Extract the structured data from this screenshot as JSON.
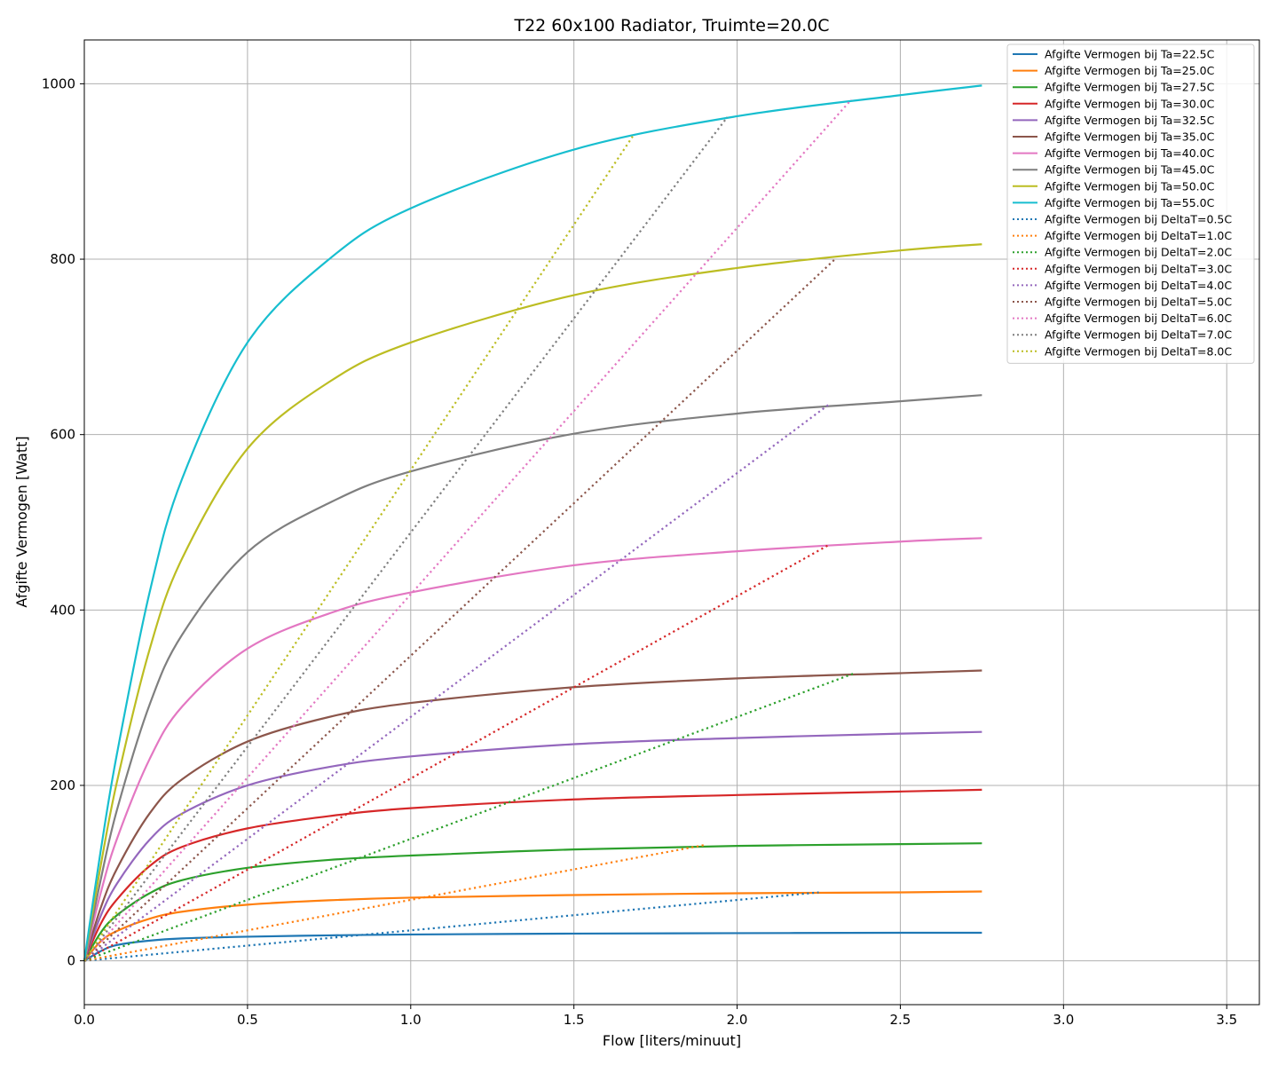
{
  "chart_data": {
    "type": "line",
    "title": "T22 60x100 Radiator, Truimte=20.0C",
    "xlabel": "Flow [liters/minuut]",
    "ylabel": "Afgifte Vermogen [Watt]",
    "xlim": [
      0,
      3.6
    ],
    "ylim": [
      -50,
      1050
    ],
    "xticks": [
      0.0,
      0.5,
      1.0,
      1.5,
      2.0,
      2.5,
      3.0,
      3.5
    ],
    "xtick_labels": [
      "0.0",
      "0.5",
      "1.0",
      "1.5",
      "2.0",
      "2.5",
      "3.0",
      "3.5"
    ],
    "yticks": [
      0,
      200,
      400,
      600,
      800,
      1000
    ],
    "ytick_labels": [
      "0",
      "200",
      "400",
      "600",
      "800",
      "1000"
    ],
    "grid": true,
    "legend_position": "top-right",
    "series": [
      {
        "name": "Afgifte Vermogen bij Ta=22.5C",
        "style": "solid",
        "color": "#1f77b4",
        "x": [
          0,
          0.05,
          0.1,
          0.2,
          0.3,
          0.5,
          0.75,
          1.0,
          1.5,
          2.0,
          2.5,
          2.75
        ],
        "y": [
          0,
          11,
          18,
          23,
          25.5,
          27.5,
          29,
          30,
          31,
          31.5,
          32,
          32
        ]
      },
      {
        "name": "Afgifte Vermogen bij Ta=25.0C",
        "style": "solid",
        "color": "#ff7f0e",
        "x": [
          0,
          0.05,
          0.1,
          0.2,
          0.3,
          0.5,
          0.75,
          1.0,
          1.5,
          2.0,
          2.5,
          2.75
        ],
        "y": [
          0,
          22,
          34,
          48,
          56,
          64,
          69,
          72,
          75,
          77,
          78,
          79
        ]
      },
      {
        "name": "Afgifte Vermogen bij Ta=27.5C",
        "style": "solid",
        "color": "#2ca02c",
        "x": [
          0,
          0.05,
          0.1,
          0.2,
          0.3,
          0.5,
          0.75,
          1.0,
          1.5,
          2.0,
          2.5,
          2.75
        ],
        "y": [
          0,
          32,
          52,
          77,
          92,
          106,
          115,
          120,
          127,
          131,
          133,
          134
        ]
      },
      {
        "name": "Afgifte Vermogen bij Ta=30.0C",
        "style": "solid",
        "color": "#d62728",
        "x": [
          0,
          0.05,
          0.1,
          0.2,
          0.3,
          0.5,
          0.75,
          1.0,
          1.5,
          2.0,
          2.5,
          2.75
        ],
        "y": [
          0,
          42,
          70,
          108,
          130,
          151,
          165,
          174,
          184,
          189,
          193,
          195
        ]
      },
      {
        "name": "Afgifte Vermogen bij Ta=32.5C",
        "style": "solid",
        "color": "#9467bd",
        "x": [
          0,
          0.05,
          0.1,
          0.2,
          0.3,
          0.5,
          0.75,
          1.0,
          1.5,
          2.0,
          2.5,
          2.75
        ],
        "y": [
          0,
          51,
          88,
          138,
          168,
          200,
          221,
          233,
          247,
          254,
          259,
          261
        ]
      },
      {
        "name": "Afgifte Vermogen bij Ta=35.0C",
        "style": "solid",
        "color": "#8c564b",
        "x": [
          0,
          0.05,
          0.1,
          0.2,
          0.3,
          0.5,
          0.75,
          1.0,
          1.5,
          2.0,
          2.5,
          2.75
        ],
        "y": [
          0,
          60,
          105,
          168,
          207,
          250,
          278,
          294,
          312,
          322,
          328,
          331
        ]
      },
      {
        "name": "Afgifte Vermogen bij Ta=40.0C",
        "style": "solid",
        "color": "#e377c2",
        "x": [
          0,
          0.05,
          0.1,
          0.2,
          0.3,
          0.5,
          0.75,
          1.0,
          1.5,
          2.0,
          2.5,
          2.75
        ],
        "y": [
          0,
          77,
          139,
          230,
          290,
          356,
          396,
          420,
          451,
          467,
          478,
          482
        ]
      },
      {
        "name": "Afgifte Vermogen bij Ta=45.0C",
        "style": "solid",
        "color": "#7f7f7f",
        "x": [
          0,
          0.05,
          0.1,
          0.2,
          0.3,
          0.5,
          0.75,
          1.0,
          1.5,
          2.0,
          2.5,
          2.75
        ],
        "y": [
          0,
          92,
          172,
          292,
          372,
          466,
          522,
          558,
          601,
          624,
          638,
          645
        ]
      },
      {
        "name": "Afgifte Vermogen bij Ta=50.0C",
        "style": "solid",
        "color": "#bcbd22",
        "x": [
          0,
          0.05,
          0.1,
          0.2,
          0.3,
          0.5,
          0.75,
          1.0,
          1.5,
          2.0,
          2.5,
          2.75
        ],
        "y": [
          0,
          108,
          204,
          355,
          459,
          584,
          660,
          705,
          759,
          790,
          810,
          817
        ]
      },
      {
        "name": "Afgifte Vermogen bij Ta=55.0C",
        "style": "solid",
        "color": "#17becf",
        "x": [
          0,
          0.05,
          0.1,
          0.2,
          0.3,
          0.5,
          0.75,
          1.0,
          1.5,
          2.0,
          2.5,
          2.75
        ],
        "y": [
          0,
          125,
          236,
          420,
          550,
          705,
          800,
          858,
          925,
          963,
          987,
          998
        ]
      },
      {
        "name": "Afgifte Vermogen bij DeltaT=0.5C",
        "style": "dotted",
        "color": "#1f77b4",
        "x": [
          0,
          2.25
        ],
        "y": [
          0,
          78
        ]
      },
      {
        "name": "Afgifte Vermogen bij DeltaT=1.0C",
        "style": "dotted",
        "color": "#ff7f0e",
        "x": [
          0,
          1.9
        ],
        "y": [
          0,
          132
        ]
      },
      {
        "name": "Afgifte Vermogen bij DeltaT=2.0C",
        "style": "dotted",
        "color": "#2ca02c",
        "x": [
          0,
          2.36
        ],
        "y": [
          0,
          328
        ]
      },
      {
        "name": "Afgifte Vermogen bij DeltaT=3.0C",
        "style": "dotted",
        "color": "#d62728",
        "x": [
          0,
          2.28
        ],
        "y": [
          0,
          474
        ]
      },
      {
        "name": "Afgifte Vermogen bij DeltaT=4.0C",
        "style": "dotted",
        "color": "#9467bd",
        "x": [
          0,
          2.28
        ],
        "y": [
          0,
          634
        ]
      },
      {
        "name": "Afgifte Vermogen bij DeltaT=5.0C",
        "style": "dotted",
        "color": "#8c564b",
        "x": [
          0,
          2.3
        ],
        "y": [
          0,
          800
        ]
      },
      {
        "name": "Afgifte Vermogen bij DeltaT=6.0C",
        "style": "dotted",
        "color": "#e377c2",
        "x": [
          0,
          2.35
        ],
        "y": [
          0,
          982
        ]
      },
      {
        "name": "Afgifte Vermogen bij DeltaT=7.0C",
        "style": "dotted",
        "color": "#7f7f7f",
        "x": [
          0,
          1.97
        ],
        "y": [
          0,
          962
        ]
      },
      {
        "name": "Afgifte Vermogen bij DeltaT=8.0C",
        "style": "dotted",
        "color": "#bcbd22",
        "x": [
          0,
          1.68
        ],
        "y": [
          0,
          940
        ]
      }
    ]
  }
}
